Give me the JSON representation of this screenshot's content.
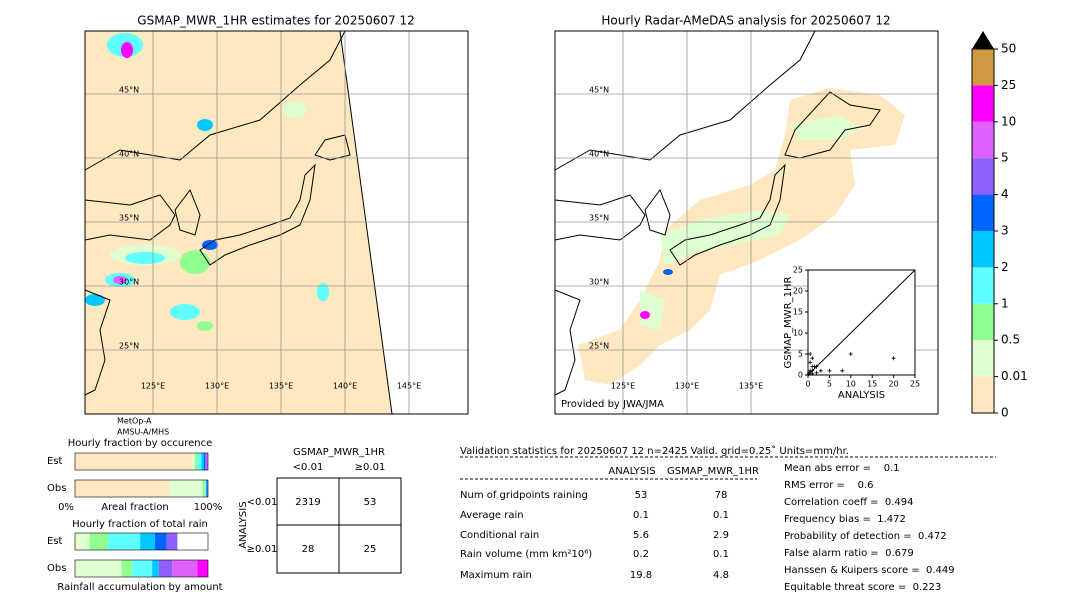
{
  "left_map": {
    "title": "GSMAP_MWR_1HR estimates for 20250607 12",
    "lat_labels": [
      "45°N",
      "40°N",
      "35°N",
      "30°N",
      "25°N"
    ],
    "lon_labels": [
      "125°E",
      "130°E",
      "135°E",
      "140°E",
      "145°E"
    ],
    "satellite": [
      "MetOp-A",
      "AMSU-A/MHS"
    ]
  },
  "right_map": {
    "title": "Hourly Radar-AMeDAS analysis for 20250607 12",
    "lat_labels": [
      "45°N",
      "40°N",
      "35°N",
      "30°N",
      "25°N"
    ],
    "lon_labels": [
      "125°E",
      "130°E",
      "135°E"
    ],
    "credit": "Provided by JWA/JMA",
    "inset": {
      "xlabel": "ANALYSIS",
      "ylabel": "GSMAP_MWR_1HR",
      "xlim": [
        0,
        25
      ],
      "ylim": [
        0,
        25
      ],
      "xticks": [
        0,
        5,
        10,
        15,
        20,
        25
      ],
      "yticks": [
        0,
        5,
        10,
        15,
        20,
        25
      ],
      "x": [
        0.2,
        0.3,
        0.5,
        1,
        1,
        1.5,
        2,
        0.5,
        1,
        3,
        2,
        5,
        8,
        10,
        20,
        0.5,
        1
      ],
      "y": [
        0.2,
        0.5,
        1,
        0.3,
        2,
        2,
        0.5,
        3,
        4,
        1,
        2,
        1,
        1,
        5,
        4,
        5,
        1
      ]
    }
  },
  "colorbar": {
    "levels": [
      0,
      0.01,
      0.5,
      1,
      2,
      3,
      4,
      5,
      10,
      25,
      50
    ],
    "colors": [
      "#fde8c0",
      "#e0ffd0",
      "#90ff90",
      "#60ffff",
      "#00c8ff",
      "#0064ff",
      "#9060ff",
      "#dd60ff",
      "#ff00ff",
      "#d09a40"
    ]
  },
  "fraction": {
    "occurrence_title": "Hourly fraction by occurence",
    "total_title": "Hourly fraction of total rain",
    "rows": [
      "Est",
      "Obs"
    ],
    "axis_labels": [
      "0%",
      "Areal fraction",
      "100%"
    ],
    "amount_label": "Rainfall accumulation by amount",
    "occurrence": [
      [
        88,
        2,
        2,
        3,
        2,
        1,
        1,
        1,
        0,
        0
      ],
      [
        71,
        25,
        1.5,
        1,
        0.5,
        0.5,
        0.5,
        0,
        0,
        0
      ]
    ],
    "total": [
      [
        0,
        11,
        14,
        24,
        11,
        9,
        8,
        0,
        0,
        0
      ],
      [
        0,
        35,
        8,
        15,
        5,
        0,
        10,
        19,
        8,
        0
      ]
    ]
  },
  "contingency": {
    "title": "GSMAP_MWR_1HR",
    "columns": [
      "<0.01",
      "≥0.01"
    ],
    "rows": [
      "<0.01",
      "≥0.01"
    ],
    "axis": "ANALYSIS",
    "cells": [
      [
        2319,
        53
      ],
      [
        28,
        25
      ]
    ]
  },
  "validation": {
    "header": "Validation statistics for 20250607 12  n=2425 Valid. grid=0.25˚ Units=mm/hr.",
    "columns": [
      "ANALYSIS",
      "GSMAP_MWR_1HR"
    ],
    "rows": [
      {
        "label": "Num of gridpoints raining",
        "values": [
          53,
          78
        ]
      },
      {
        "label": "Average rain",
        "values": [
          0.1,
          0.1
        ]
      },
      {
        "label": "Conditional rain",
        "values": [
          5.6,
          2.9
        ]
      },
      {
        "label": "Rain volume (mm km²10⁶)",
        "values": [
          0.2,
          0.1
        ]
      },
      {
        "label": "Maximum rain",
        "values": [
          19.8,
          4.8
        ]
      }
    ],
    "scores": [
      "Mean abs error =    0.1",
      "RMS error =    0.6",
      "Correlation coeff =  0.494",
      "Frequency bias =  1.472",
      "Probability of detection =  0.472",
      "False alarm ratio =  0.679",
      "Hanssen & Kuipers score =  0.449",
      "Equitable threat score =  0.223"
    ]
  }
}
